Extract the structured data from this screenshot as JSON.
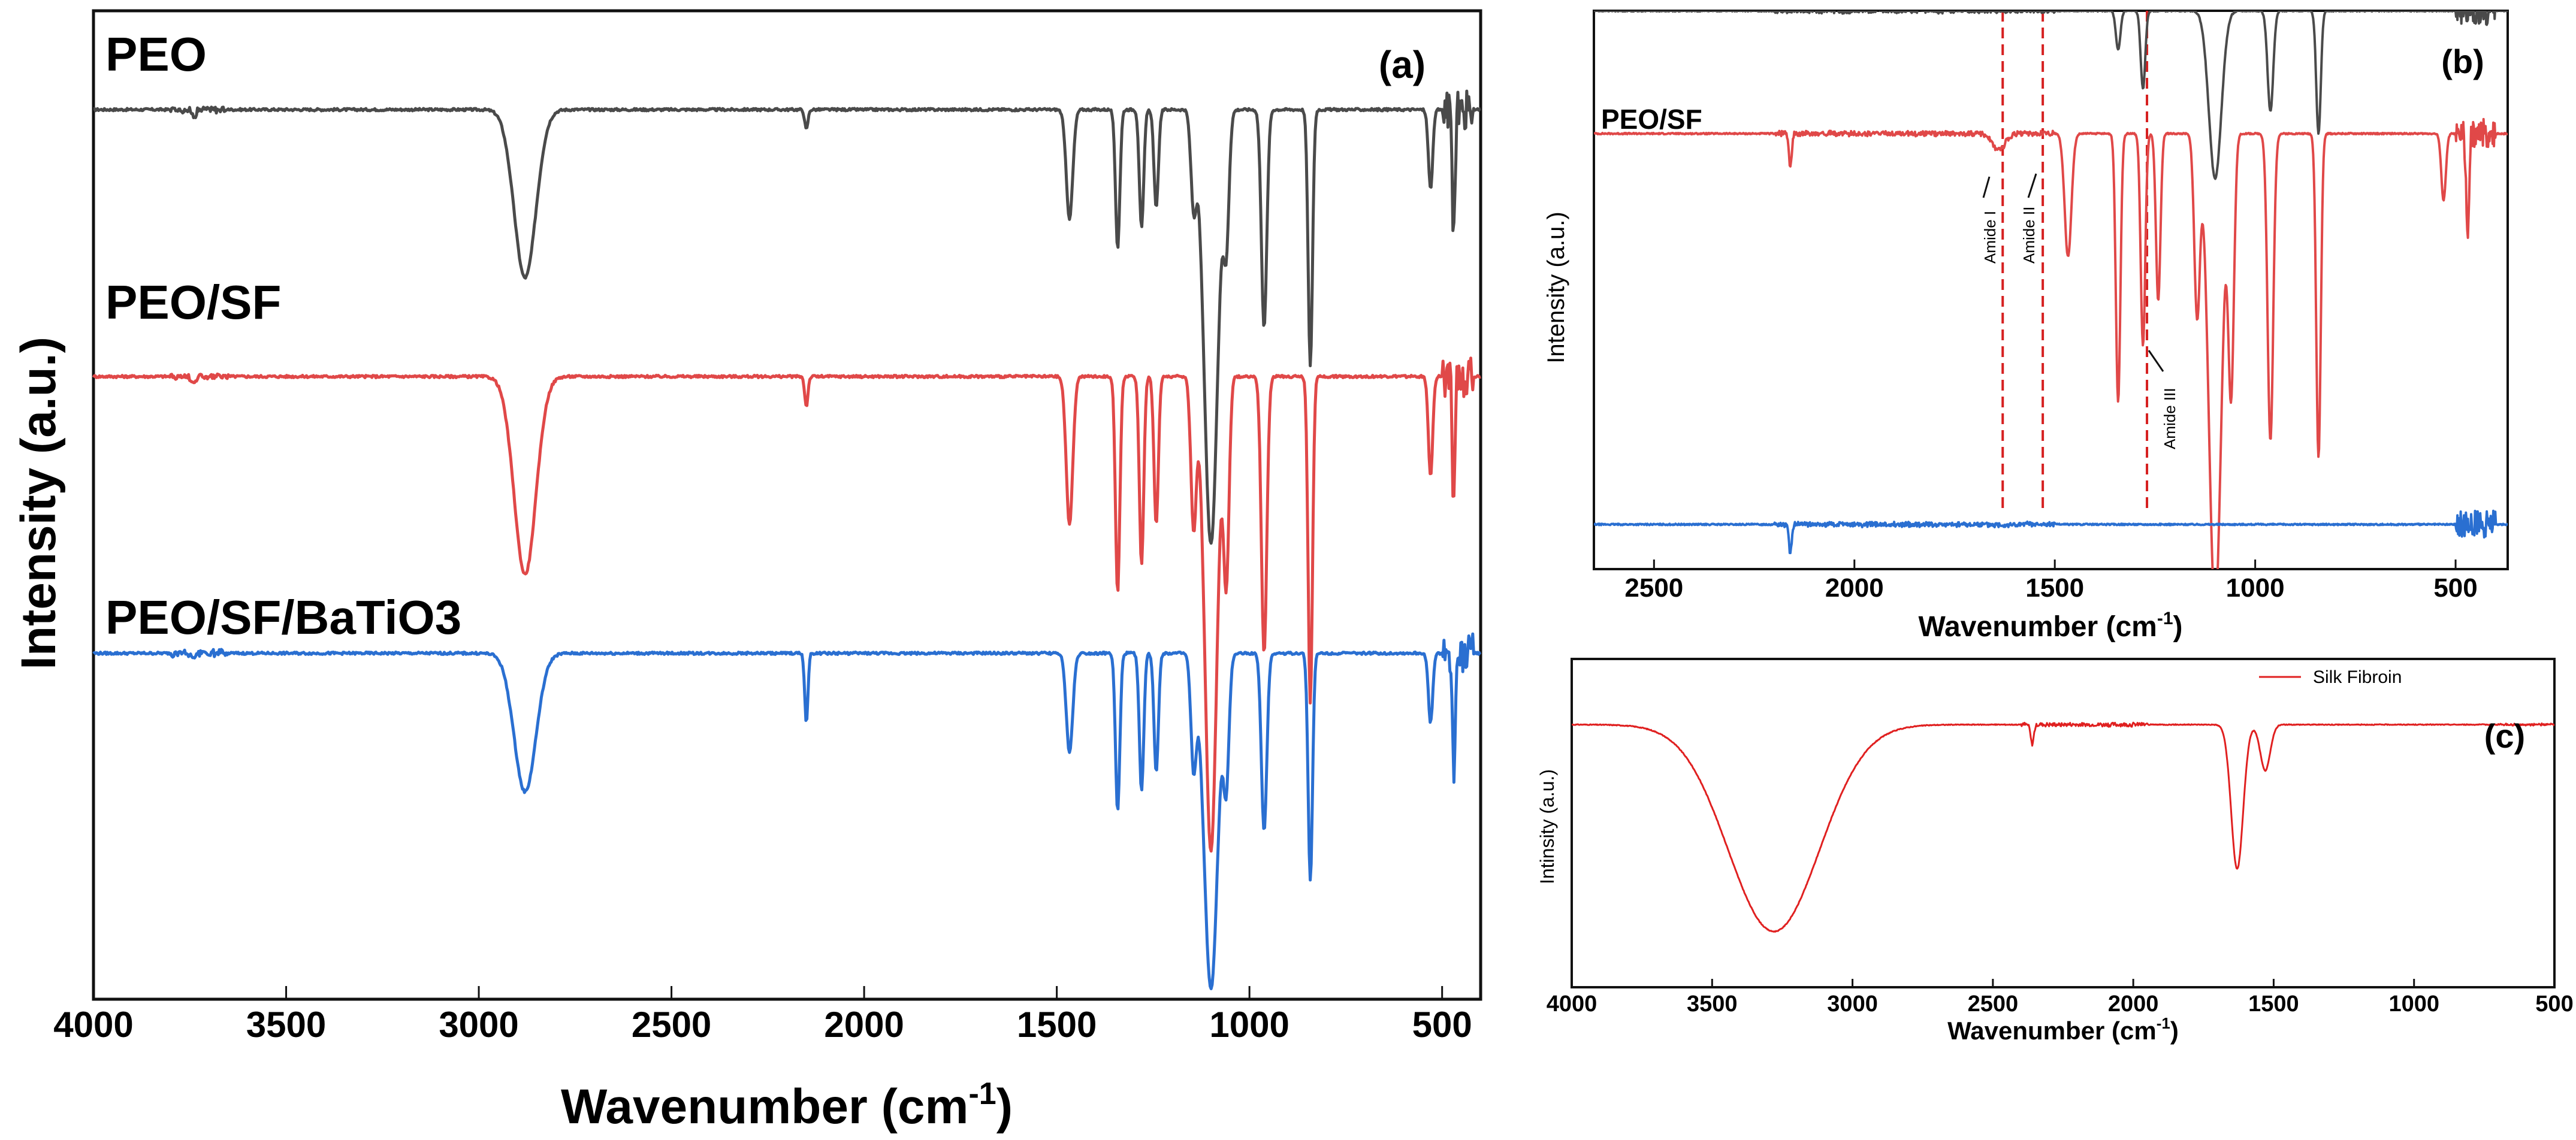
{
  "chart_data": [
    {
      "panel": "(a)",
      "type": "line",
      "xlabel": "Wavenumber",
      "xlabel_unit": "(cm",
      "xlabel_sup": "-1",
      "xlabel_close": ")",
      "ylabel": "Intensity (a.u.)",
      "xlim": [
        4000,
        400
      ],
      "ylim": [
        0,
        100
      ],
      "x_ticks": [
        4000,
        3500,
        3000,
        2500,
        2000,
        1500,
        1000,
        500
      ],
      "series": [
        {
          "name": "PEO",
          "color": "#4a4a4a",
          "baseline": 90,
          "peaks": [
            [
              3740,
              0.6,
              8
            ],
            [
              2880,
              17,
              40
            ],
            [
              2150,
              2,
              6
            ],
            [
              1467,
              11,
              12
            ],
            [
              1342,
              14,
              8
            ],
            [
              1280,
              12,
              8
            ],
            [
              1242,
              10,
              8
            ],
            [
              1145,
              9,
              10
            ],
            [
              1100,
              44,
              25
            ],
            [
              1060,
              12,
              10
            ],
            [
              962,
              22,
              10
            ],
            [
              842,
              26,
              8
            ],
            [
              530,
              8,
              8
            ],
            [
              470,
              12,
              5
            ]
          ]
        },
        {
          "name": "PEO/SF",
          "color": "#e04848",
          "baseline": 63,
          "peaks": [
            [
              3740,
              0.6,
              8
            ],
            [
              2880,
              20,
              40
            ],
            [
              2150,
              3,
              6
            ],
            [
              1467,
              15,
              12
            ],
            [
              1342,
              22,
              8
            ],
            [
              1280,
              19,
              8
            ],
            [
              1242,
              15,
              8
            ],
            [
              1145,
              15,
              10
            ],
            [
              1100,
              48,
              22
            ],
            [
              1060,
              20,
              10
            ],
            [
              962,
              28,
              10
            ],
            [
              842,
              33,
              8
            ],
            [
              530,
              10,
              8
            ],
            [
              470,
              14,
              5
            ]
          ]
        },
        {
          "name": "PEO/SF/BaTiO3",
          "color": "#2a6fd1",
          "baseline": 35,
          "peaks": [
            [
              3740,
              0.6,
              8
            ],
            [
              2880,
              14,
              40
            ],
            [
              2150,
              7,
              6
            ],
            [
              1467,
              10,
              12
            ],
            [
              1342,
              16,
              8
            ],
            [
              1280,
              14,
              8
            ],
            [
              1242,
              12,
              8
            ],
            [
              1145,
              11,
              10
            ],
            [
              1100,
              34,
              25
            ],
            [
              1060,
              12,
              10
            ],
            [
              962,
              18,
              10
            ],
            [
              842,
              23,
              8
            ],
            [
              530,
              7,
              8
            ],
            [
              470,
              12,
              5
            ]
          ]
        }
      ]
    },
    {
      "panel": "(b)",
      "type": "line",
      "xlabel": "Wavenumber",
      "xlabel_unit": "(cm",
      "xlabel_sup": "-1",
      "xlabel_close": ")",
      "ylabel": "Intensity (a.u.)",
      "xlim": [
        2650,
        370
      ],
      "ylim": [
        0,
        100
      ],
      "x_ticks": [
        2500,
        2000,
        1500,
        1000,
        500
      ],
      "series_label": "PEO/SF",
      "series": [
        {
          "name": "PEO/SF",
          "color": "#e04848",
          "baseline": 78,
          "peaks": [
            [
              2160,
              6,
              5
            ],
            [
              1640,
              3,
              22
            ],
            [
              1467,
              22,
              12
            ],
            [
              1342,
              48,
              8
            ],
            [
              1280,
              38,
              8
            ],
            [
              1242,
              30,
              8
            ],
            [
              1145,
              32,
              10
            ],
            [
              1100,
              85,
              22
            ],
            [
              1060,
              45,
              10
            ],
            [
              962,
              55,
              10
            ],
            [
              842,
              58,
              8
            ],
            [
              530,
              12,
              8
            ],
            [
              470,
              20,
              5
            ]
          ]
        },
        {
          "name": "PEO",
          "color": "#4a4a4a",
          "baseline": 100,
          "peaks": [
            [
              1342,
              7,
              8
            ],
            [
              1280,
              14,
              8
            ],
            [
              1100,
              30,
              22
            ],
            [
              962,
              18,
              10
            ],
            [
              842,
              22,
              8
            ]
          ]
        },
        {
          "name": "PEO/SF/BaTiO3",
          "color": "#2a6fd1",
          "baseline": 8,
          "peaks": [
            [
              2160,
              5,
              5
            ]
          ]
        }
      ],
      "reference_lines": [
        1630,
        1530,
        1270
      ],
      "annotations": [
        "Amide I",
        "Amide II",
        "Amide III"
      ]
    },
    {
      "panel": "(c)",
      "type": "line",
      "xlabel": "Wavenumber",
      "xlabel_unit": "(cm",
      "xlabel_sup": "-1",
      "xlabel_close": ")",
      "ylabel": "Intinsity (a.u.)",
      "xlim": [
        4000,
        500
      ],
      "ylim": [
        0,
        100
      ],
      "x_ticks": [
        4000,
        3500,
        3000,
        2500,
        2000,
        1500,
        1000,
        500
      ],
      "legend": "Silk Fibroin",
      "series": [
        {
          "name": "Silk Fibroin",
          "color": "#e02020",
          "baseline": 80,
          "peaks": [
            [
              3280,
              63,
              230
            ],
            [
              2360,
              6,
              8
            ],
            [
              1630,
              44,
              30
            ],
            [
              1530,
              14,
              25
            ]
          ]
        }
      ]
    }
  ]
}
